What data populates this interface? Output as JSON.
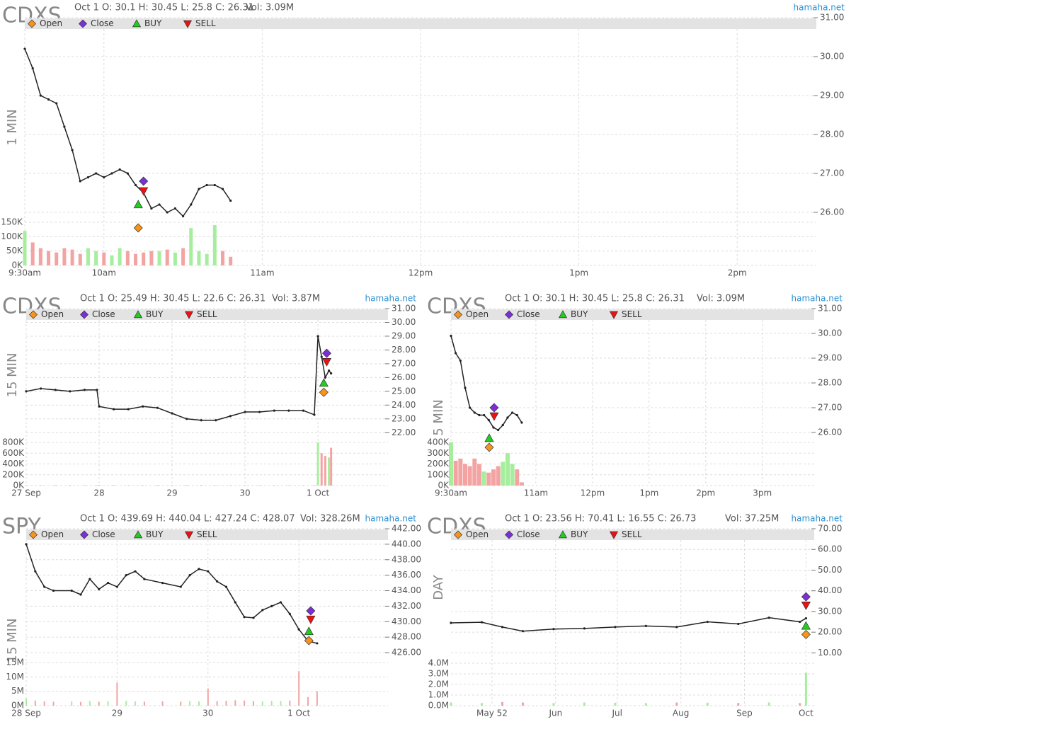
{
  "chart_data": [
    {
      "type": "line",
      "symbol": "CDXS",
      "period": "1 MIN",
      "info": "Oct 1 O: 30.1 H: 30.45 L: 25.8 C: 26.31",
      "volume_info": "Vol: 3.09M",
      "source": "hamaha.net",
      "color": "#222222",
      "up_color": "#a6ee9e",
      "down_color": "#f4a3a3",
      "x": [
        0,
        3,
        6,
        9,
        12,
        15,
        18,
        21,
        24,
        27,
        30,
        33,
        36,
        39,
        42,
        45,
        48,
        51,
        54,
        57,
        60,
        63,
        66,
        69,
        72,
        75,
        78
      ],
      "values": [
        30.2,
        29.7,
        29.0,
        28.9,
        28.8,
        28.2,
        27.6,
        26.8,
        26.9,
        27.0,
        26.9,
        27.0,
        27.1,
        27.0,
        26.7,
        26.5,
        26.1,
        26.2,
        26.0,
        26.1,
        25.9,
        26.2,
        26.6,
        26.7,
        26.7,
        26.6,
        26.3
      ],
      "xlim": [
        0,
        300
      ],
      "xticks": [
        {
          "value": 0,
          "label": "9:30am"
        },
        {
          "value": 30,
          "label": "10am"
        },
        {
          "value": 90,
          "label": "11am"
        },
        {
          "value": 150,
          "label": "12pm"
        },
        {
          "value": 210,
          "label": "1pm"
        },
        {
          "value": 270,
          "label": "2pm"
        }
      ],
      "ylim": [
        25.8,
        31
      ],
      "yticks": [
        {
          "value": 26,
          "label": "26.00"
        },
        {
          "value": 27,
          "label": "27.00"
        },
        {
          "value": 28,
          "label": "28.00"
        },
        {
          "value": 29,
          "label": "29.00"
        },
        {
          "value": 30,
          "label": "30.00"
        },
        {
          "value": 31,
          "label": "31.00"
        }
      ],
      "markers": [
        {
          "name": "Open",
          "color": "#f7931e",
          "shape": "diamond",
          "x": 43,
          "y": 25.6
        },
        {
          "name": "Close",
          "color": "#7b2fd6",
          "shape": "diamond",
          "x": 45,
          "y": 26.8
        },
        {
          "name": "BUY",
          "color": "#22cc22",
          "shape": "triangle-up",
          "x": 43,
          "y": 26.2
        },
        {
          "name": "SELL",
          "color": "#ee1111",
          "shape": "triangle-down",
          "x": 45,
          "y": 26.55
        }
      ],
      "volume": {
        "values": [
          120000,
          80000,
          60000,
          50000,
          45000,
          60000,
          55000,
          40000,
          60000,
          50000,
          45000,
          35000,
          60000,
          50000,
          40000,
          45000,
          50000,
          50000,
          55000,
          45000,
          60000,
          130000,
          50000,
          40000,
          140000,
          50000,
          30000
        ],
        "ylim": [
          0,
          150000
        ],
        "yticks": [
          {
            "value": 0,
            "label": "0K"
          },
          {
            "value": 50000,
            "label": "50K"
          },
          {
            "value": 100000,
            "label": "100K"
          },
          {
            "value": 150000,
            "label": "150K"
          }
        ]
      }
    },
    {
      "type": "line",
      "symbol": "CDXS",
      "period": "15 MIN",
      "info": "Oct 1 O: 25.49 H: 30.45 L: 22.6 C: 26.31",
      "volume_info": "Vol: 3.87M",
      "source": "hamaha.net",
      "color": "#222222",
      "up_color": "#a6ee9e",
      "down_color": "#f4a3a3",
      "x": [
        0,
        0.2,
        0.4,
        0.6,
        0.8,
        0.97,
        1.0,
        1.2,
        1.4,
        1.6,
        1.8,
        2.0,
        2.2,
        2.4,
        2.6,
        2.8,
        3.0,
        3.2,
        3.4,
        3.6,
        3.8,
        3.95,
        4.0,
        4.05,
        4.1,
        4.15,
        4.18
      ],
      "values": [
        25.0,
        25.2,
        25.1,
        25.0,
        25.1,
        25.1,
        23.9,
        23.7,
        23.7,
        23.9,
        23.8,
        23.4,
        23.0,
        22.9,
        22.9,
        23.2,
        23.5,
        23.5,
        23.6,
        23.6,
        23.6,
        23.3,
        29.0,
        27.5,
        26.0,
        26.5,
        26.3
      ],
      "xlim": [
        0,
        4.96
      ],
      "xticks": [
        {
          "value": 0,
          "label": "27 Sep"
        },
        {
          "value": 1,
          "label": "28"
        },
        {
          "value": 2,
          "label": "29"
        },
        {
          "value": 3,
          "label": "30"
        },
        {
          "value": 4,
          "label": "1 Oct"
        }
      ],
      "ylim": [
        21.5,
        31
      ],
      "yticks": [
        {
          "value": 22,
          "label": "22.00"
        },
        {
          "value": 23,
          "label": "23.00"
        },
        {
          "value": 24,
          "label": "24.00"
        },
        {
          "value": 25,
          "label": "25.00"
        },
        {
          "value": 26,
          "label": "26.00"
        },
        {
          "value": 27,
          "label": "27.00"
        },
        {
          "value": 28,
          "label": "28.00"
        },
        {
          "value": 29,
          "label": "29.00"
        },
        {
          "value": 30,
          "label": "30.00"
        },
        {
          "value": 31,
          "label": "31.00"
        }
      ],
      "markers": [
        {
          "name": "Open",
          "color": "#f7931e",
          "shape": "diamond",
          "x": 4.08,
          "y": 24.93
        },
        {
          "name": "Close",
          "color": "#7b2fd6",
          "shape": "diamond",
          "x": 4.12,
          "y": 27.76
        },
        {
          "name": "BUY",
          "color": "#22cc22",
          "shape": "triangle-up",
          "x": 4.08,
          "y": 25.6
        },
        {
          "name": "SELL",
          "color": "#ee1111",
          "shape": "triangle-down",
          "x": 4.12,
          "y": 27.14
        }
      ],
      "volume": {
        "values": [
          10000,
          10000,
          10000,
          10000,
          10000,
          10000,
          10000,
          10000,
          10000,
          10000,
          10000,
          10000,
          10000,
          10000,
          10000,
          10000,
          10000,
          10000,
          10000,
          10000,
          10000,
          10000,
          800000,
          600000,
          550000,
          520000,
          700000
        ],
        "ylim": [
          0,
          800000
        ],
        "yticks": [
          {
            "value": 0,
            "label": "0K"
          },
          {
            "value": 200000,
            "label": "200K"
          },
          {
            "value": 400000,
            "label": "400K"
          },
          {
            "value": 600000,
            "label": "600K"
          },
          {
            "value": 800000,
            "label": "800K"
          }
        ]
      }
    },
    {
      "type": "line",
      "symbol": "CDXS",
      "period": "5 MIN",
      "info": "Oct 1 O: 30.1 H: 30.45 L: 25.8 C: 26.31",
      "volume_info": "Vol: 3.09M",
      "source": "hamaha.net",
      "color": "#222222",
      "up_color": "#a6ee9e",
      "down_color": "#f4a3a3",
      "x": [
        0,
        5,
        10,
        15,
        20,
        25,
        30,
        35,
        40,
        45,
        50,
        55,
        60,
        65,
        70,
        75
      ],
      "values": [
        29.9,
        29.2,
        28.9,
        27.8,
        27.0,
        26.8,
        26.7,
        26.7,
        26.5,
        26.2,
        26.1,
        26.3,
        26.6,
        26.8,
        26.7,
        26.4
      ],
      "xlim": [
        0,
        385
      ],
      "xticks": [
        {
          "value": 0,
          "label": "9:30am"
        },
        {
          "value": 90,
          "label": "11am"
        },
        {
          "value": 150,
          "label": "12pm"
        },
        {
          "value": 210,
          "label": "1pm"
        },
        {
          "value": 270,
          "label": "2pm"
        },
        {
          "value": 330,
          "label": "3pm"
        }
      ],
      "ylim": [
        25.3,
        31
      ],
      "yticks": [
        {
          "value": 26,
          "label": "26.00"
        },
        {
          "value": 27,
          "label": "27.00"
        },
        {
          "value": 28,
          "label": "28.00"
        },
        {
          "value": 29,
          "label": "29.00"
        },
        {
          "value": 30,
          "label": "30.00"
        },
        {
          "value": 31,
          "label": "31.00"
        }
      ],
      "markers": [
        {
          "name": "Open",
          "color": "#f7931e",
          "shape": "diamond",
          "x": 40.5,
          "y": 25.4
        },
        {
          "name": "Close",
          "color": "#7b2fd6",
          "shape": "diamond",
          "x": 45.75,
          "y": 27.0
        },
        {
          "name": "BUY",
          "color": "#22cc22",
          "shape": "triangle-up",
          "x": 40.5,
          "y": 25.77
        },
        {
          "name": "SELL",
          "color": "#ee1111",
          "shape": "triangle-down",
          "x": 45.75,
          "y": 26.66
        }
      ],
      "volume": {
        "values": [
          400000,
          230000,
          250000,
          200000,
          180000,
          250000,
          200000,
          130000,
          120000,
          150000,
          180000,
          220000,
          300000,
          200000,
          150000,
          30000
        ],
        "ylim": [
          0,
          400000
        ],
        "yticks": [
          {
            "value": 0,
            "label": "0K"
          },
          {
            "value": 100000,
            "label": "100K"
          },
          {
            "value": 200000,
            "label": "200K"
          },
          {
            "value": 300000,
            "label": "300K"
          },
          {
            "value": 400000,
            "label": "400K"
          }
        ]
      }
    },
    {
      "type": "line",
      "symbol": "SPY",
      "period": "15 MIN",
      "info": "Oct 1 O: 439.69 H: 440.04 L: 427.24 C: 428.07",
      "volume_info": "Vol: 328.26M",
      "source": "hamaha.net",
      "color": "#222222",
      "up_color": "#a6ee9e",
      "down_color": "#f4a3a3",
      "x": [
        0,
        0.1,
        0.2,
        0.3,
        0.5,
        0.6,
        0.7,
        0.8,
        0.9,
        1.0,
        1.1,
        1.2,
        1.3,
        1.5,
        1.7,
        1.8,
        1.9,
        2.0,
        2.1,
        2.2,
        2.3,
        2.4,
        2.5,
        2.6,
        2.7,
        2.8,
        2.9,
        3.0,
        3.1,
        3.2
      ],
      "values": [
        440.0,
        436.5,
        434.5,
        434.0,
        434.0,
        433.5,
        435.5,
        434.2,
        435.0,
        434.5,
        436.0,
        436.5,
        435.5,
        435.0,
        434.5,
        436.0,
        436.8,
        436.5,
        435.2,
        434.5,
        432.5,
        430.6,
        430.5,
        431.5,
        432.0,
        432.5,
        431.0,
        429.0,
        427.5,
        427.2
      ],
      "xlim": [
        0,
        3.98
      ],
      "xticks": [
        {
          "value": 0,
          "label": "28 Sep"
        },
        {
          "value": 1,
          "label": "29"
        },
        {
          "value": 2,
          "label": "30"
        },
        {
          "value": 3,
          "label": "1 Oct"
        }
      ],
      "ylim": [
        425,
        442
      ],
      "yticks": [
        {
          "value": 426,
          "label": "426.00"
        },
        {
          "value": 428,
          "label": "428.00"
        },
        {
          "value": 430,
          "label": "430.00"
        },
        {
          "value": 432,
          "label": "432.00"
        },
        {
          "value": 434,
          "label": "434.00"
        },
        {
          "value": 436,
          "label": "436.00"
        },
        {
          "value": 438,
          "label": "438.00"
        },
        {
          "value": 440,
          "label": "440.00"
        },
        {
          "value": 442,
          "label": "442.00"
        }
      ],
      "markers": [
        {
          "name": "Open",
          "color": "#f7931e",
          "shape": "diamond",
          "x": 3.11,
          "y": 427.56
        },
        {
          "name": "Close",
          "color": "#7b2fd6",
          "shape": "diamond",
          "x": 3.13,
          "y": 431.4
        },
        {
          "name": "BUY",
          "color": "#22cc22",
          "shape": "triangle-up",
          "x": 3.11,
          "y": 428.75
        },
        {
          "name": "SELL",
          "color": "#ee1111",
          "shape": "triangle-down",
          "x": 3.13,
          "y": 430.3
        }
      ],
      "volume": {
        "values": [
          2500000,
          1800000,
          1500000,
          1400000,
          1500000,
          1300000,
          1600000,
          1400000,
          1500000,
          8000000,
          1700000,
          1500000,
          1400000,
          1500000,
          1400000,
          1600000,
          1500000,
          6000000,
          1600000,
          1700000,
          1900000,
          1800000,
          1600000,
          1500000,
          1700000,
          1600000,
          1800000,
          12000000,
          3000000,
          5000000
        ],
        "ylim": [
          0,
          15000000
        ],
        "yticks": [
          {
            "value": 0,
            "label": "0M"
          },
          {
            "value": 5000000,
            "label": "5M"
          },
          {
            "value": 10000000,
            "label": "10M"
          },
          {
            "value": 15000000,
            "label": "15M"
          }
        ]
      }
    },
    {
      "type": "line",
      "symbol": "CDXS",
      "period": "DAY",
      "info": "Oct 1 O: 23.56 H: 70.41 L: 16.55 C: 26.73",
      "volume_info": "Vol: 37.25M",
      "source": "hamaha.net",
      "color": "#222222",
      "up_color": "#a6ee9e",
      "down_color": "#f4a3a3",
      "x": [
        -20,
        -5,
        5,
        15,
        30,
        45,
        60,
        75,
        90,
        105,
        120,
        135,
        150,
        153
      ],
      "values": [
        24.5,
        24.8,
        22.5,
        20.5,
        21.5,
        21.8,
        22.5,
        23.0,
        22.5,
        25.0,
        24.0,
        27.0,
        25.0,
        26.7
      ],
      "xlim": [
        -20,
        157
      ],
      "xticks": [
        {
          "value": 0,
          "label": "May 52"
        },
        {
          "value": 31,
          "label": "Jun"
        },
        {
          "value": 61,
          "label": "Jul"
        },
        {
          "value": 92,
          "label": "Aug"
        },
        {
          "value": 123,
          "label": "Sep"
        },
        {
          "value": 153,
          "label": "Oct"
        }
      ],
      "ylim": [
        5,
        70
      ],
      "yticks": [
        {
          "value": 10,
          "label": "10.00"
        },
        {
          "value": 20,
          "label": "20.00"
        },
        {
          "value": 30,
          "label": "30.00"
        },
        {
          "value": 40,
          "label": "40.00"
        },
        {
          "value": 50,
          "label": "50.00"
        },
        {
          "value": 60,
          "label": "60.00"
        },
        {
          "value": 70,
          "label": "70.00"
        }
      ],
      "markers": [
        {
          "name": "Open",
          "color": "#f7931e",
          "shape": "diamond",
          "x": 153,
          "y": 18.9
        },
        {
          "name": "Close",
          "color": "#7b2fd6",
          "shape": "diamond",
          "x": 153,
          "y": 37.1
        },
        {
          "name": "BUY",
          "color": "#22cc22",
          "shape": "triangle-up",
          "x": 153,
          "y": 23
        },
        {
          "name": "SELL",
          "color": "#ee1111",
          "shape": "triangle-down",
          "x": 153,
          "y": 33
        }
      ],
      "volume": {
        "values": [
          300000,
          250000,
          350000,
          300000,
          250000,
          300000,
          280000,
          250000,
          300000,
          280000,
          260000,
          300000,
          250000,
          3100000
        ],
        "ylim": [
          0,
          4000000
        ],
        "yticks": [
          {
            "value": 0,
            "label": "0.0M"
          },
          {
            "value": 1000000,
            "label": "1.0M"
          },
          {
            "value": 2000000,
            "label": "2.0M"
          },
          {
            "value": 3000000,
            "label": "3.0M"
          },
          {
            "value": 4000000,
            "label": "4.0M"
          }
        ]
      }
    }
  ]
}
